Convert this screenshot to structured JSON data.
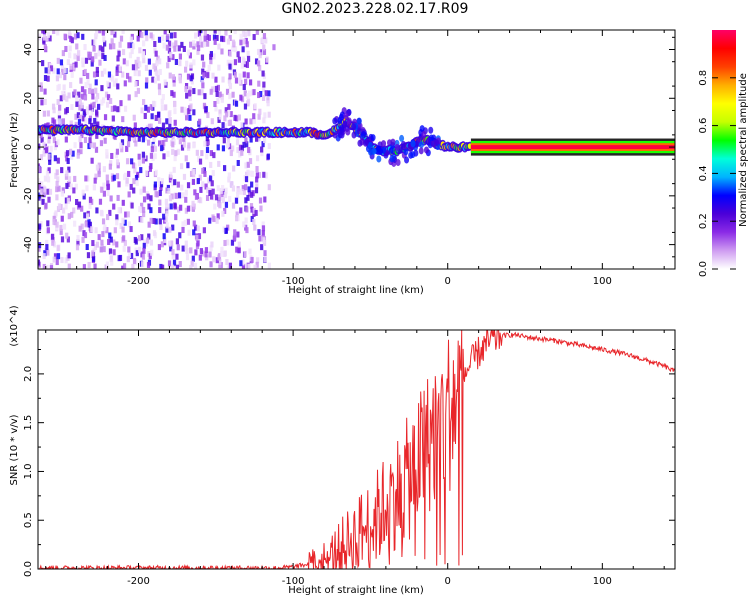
{
  "title": "GN02.2023.228.02.17.R09",
  "colors": {
    "snr_line": "#e8262a",
    "colorbar": [
      "#ffffff",
      "#cf9cf1",
      "#8b2be6",
      "#4b00d8",
      "#0000ff",
      "#00b4ff",
      "#00ffd9",
      "#00ff00",
      "#c6ff00",
      "#ffff00",
      "#ffae00",
      "#ff4000",
      "#ff0000",
      "#ff0066"
    ]
  },
  "chart_data": [
    {
      "type": "heatmap",
      "title": "GN02.2023.228.02.17.R09",
      "xlabel": "Height of straight line (km)",
      "ylabel": "Frequency (Hz)",
      "xlim": [
        -265,
        147
      ],
      "ylim": [
        -50,
        48
      ],
      "xticks": [
        -200,
        -100,
        0,
        100
      ],
      "yticks": [
        -40,
        -20,
        0,
        20,
        40
      ],
      "colorbar": {
        "label": "Normalized spectral amplitude",
        "range": [
          0.0,
          1.0
        ],
        "ticks": [
          "0.0",
          "0.2",
          "0.4",
          "0.6",
          "0.8"
        ]
      },
      "ridge_frequency": {
        "x": [
          -265,
          -230,
          -200,
          -160,
          -130,
          -110,
          -90,
          -80,
          -72,
          -66,
          -60,
          -54,
          -50,
          -46,
          -42,
          -38,
          -34,
          -30,
          -25,
          -20,
          -15,
          -10,
          -5,
          0,
          15,
          147
        ],
        "y": [
          7,
          7,
          6,
          6,
          6,
          6,
          6,
          5,
          7,
          11,
          8,
          4,
          1,
          -1,
          -2,
          -1,
          -2,
          -1,
          0,
          2,
          3,
          2,
          1,
          0,
          0,
          0
        ]
      },
      "noise_region_x": [
        -265,
        -115
      ]
    },
    {
      "type": "line",
      "xlabel": "Height of straight line (km)",
      "ylabel": "SNR (10 * v/v)",
      "y_multiplier": "(x10^4)",
      "xlim": [
        -265,
        147
      ],
      "ylim": [
        0,
        2.45
      ],
      "xticks": [
        -200,
        -100,
        0,
        100
      ],
      "yticks": [
        "0.0",
        "0.5",
        "1.0",
        "1.5",
        "2.0"
      ],
      "series": [
        {
          "x": [
            -265,
            -200,
            -150,
            -110,
            -100,
            -90,
            -80,
            -75,
            -70,
            -65,
            -60,
            -55,
            -50,
            -45,
            -40,
            -35,
            -30,
            -25,
            -20,
            -15,
            -10,
            -5,
            0,
            5,
            10,
            15,
            20,
            25,
            30,
            35,
            40,
            45,
            50,
            60,
            70,
            80,
            90,
            100,
            110,
            120,
            130,
            140,
            147
          ],
          "y": [
            0.01,
            0.01,
            0.01,
            0.01,
            0.02,
            0.05,
            0.1,
            0.15,
            0.22,
            0.3,
            0.38,
            0.45,
            0.5,
            0.6,
            0.72,
            0.82,
            0.9,
            1.0,
            1.15,
            1.3,
            1.45,
            1.55,
            1.68,
            1.82,
            1.98,
            2.1,
            2.22,
            2.3,
            2.36,
            2.39,
            2.4,
            2.4,
            2.38,
            2.36,
            2.34,
            2.31,
            2.28,
            2.25,
            2.22,
            2.18,
            2.13,
            2.08,
            2.02
          ]
        }
      ]
    }
  ]
}
